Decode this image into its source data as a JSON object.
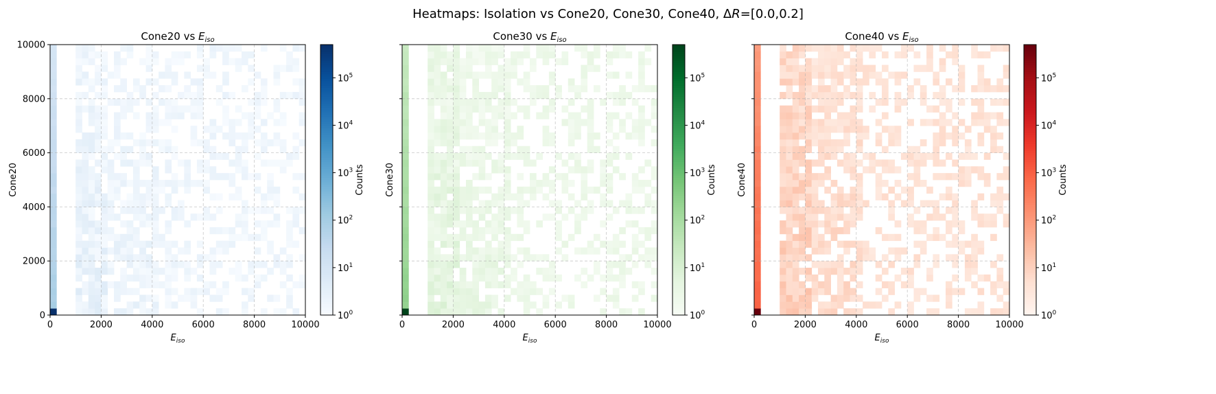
{
  "figure": {
    "title_prefix": "Heatmaps: Isolation vs Cone20, Cone30, Cone40, Δ",
    "title_italic": "R",
    "title_suffix": "=[0.0,0.2]"
  },
  "chart_data": [
    {
      "type": "heatmap",
      "title_prefix": "Cone20 vs ",
      "title_symbol": "E",
      "title_sub": "iso",
      "xlabel_symbol": "E",
      "xlabel_sub": "iso",
      "ylabel": "Cone20",
      "xlim": [
        0,
        10000
      ],
      "ylim": [
        0,
        10000
      ],
      "xticks": [
        0,
        2000,
        4000,
        6000,
        8000,
        10000
      ],
      "yticks": [
        0,
        2000,
        4000,
        6000,
        8000,
        10000
      ],
      "show_y_tick_labels": true,
      "grid": true,
      "bins": 40,
      "colormap": "Blues",
      "colors": [
        "#f7fbff",
        "#deebf7",
        "#c6dbef",
        "#9ecae1",
        "#6baed6",
        "#4292c6",
        "#2171b5",
        "#08519c",
        "#08306b"
      ],
      "colorbar": {
        "label": "Counts",
        "scale": "log",
        "range": [
          1,
          500000
        ],
        "ticks": [
          {
            "base": "10",
            "exp": "0"
          },
          {
            "base": "10",
            "exp": "1"
          },
          {
            "base": "10",
            "exp": "2"
          },
          {
            "base": "10",
            "exp": "3"
          },
          {
            "base": "10",
            "exp": "4"
          },
          {
            "base": "10",
            "exp": "5"
          }
        ]
      },
      "peak_cell": {
        "x": [
          0,
          250
        ],
        "y": [
          0,
          250
        ],
        "count": 500000
      }
    },
    {
      "type": "heatmap",
      "title_prefix": "Cone30 vs ",
      "title_symbol": "E",
      "title_sub": "iso",
      "xlabel_symbol": "E",
      "xlabel_sub": "iso",
      "ylabel": "Cone30",
      "xlim": [
        0,
        10000
      ],
      "ylim": [
        0,
        10000
      ],
      "xticks": [
        0,
        2000,
        4000,
        6000,
        8000,
        10000
      ],
      "yticks": [
        0,
        2000,
        4000,
        6000,
        8000,
        10000
      ],
      "show_y_tick_labels": false,
      "grid": true,
      "bins": 40,
      "colormap": "Greens",
      "colors": [
        "#f7fcf5",
        "#e5f5e0",
        "#c7e9c0",
        "#a1d99b",
        "#74c476",
        "#41ab5d",
        "#238b45",
        "#006d2c",
        "#00441b"
      ],
      "colorbar": {
        "label": "Counts",
        "scale": "log",
        "range": [
          1,
          500000
        ],
        "ticks": [
          {
            "base": "10",
            "exp": "0"
          },
          {
            "base": "10",
            "exp": "1"
          },
          {
            "base": "10",
            "exp": "2"
          },
          {
            "base": "10",
            "exp": "3"
          },
          {
            "base": "10",
            "exp": "4"
          },
          {
            "base": "10",
            "exp": "5"
          }
        ]
      },
      "peak_cell": {
        "x": [
          0,
          250
        ],
        "y": [
          0,
          250
        ],
        "count": 500000
      }
    },
    {
      "type": "heatmap",
      "title_prefix": "Cone40 vs ",
      "title_symbol": "E",
      "title_sub": "iso",
      "xlabel_symbol": "E",
      "xlabel_sub": "iso",
      "ylabel": "Cone40",
      "xlim": [
        0,
        10000
      ],
      "ylim": [
        0,
        10000
      ],
      "xticks": [
        0,
        2000,
        4000,
        6000,
        8000,
        10000
      ],
      "yticks": [
        0,
        2000,
        4000,
        6000,
        8000,
        10000
      ],
      "show_y_tick_labels": false,
      "grid": true,
      "bins": 40,
      "colormap": "Reds",
      "colors": [
        "#fff5f0",
        "#fee0d2",
        "#fcbba1",
        "#fc9272",
        "#fb6a4a",
        "#ef3b2c",
        "#cb181d",
        "#a50f15",
        "#67000d"
      ],
      "colorbar": {
        "label": "Counts",
        "scale": "log",
        "range": [
          1,
          500000
        ],
        "ticks": [
          {
            "base": "10",
            "exp": "0"
          },
          {
            "base": "10",
            "exp": "1"
          },
          {
            "base": "10",
            "exp": "2"
          },
          {
            "base": "10",
            "exp": "3"
          },
          {
            "base": "10",
            "exp": "4"
          },
          {
            "base": "10",
            "exp": "5"
          }
        ]
      },
      "peak_cell": {
        "x": [
          0,
          250
        ],
        "y": [
          0,
          250
        ],
        "count": 500000
      }
    }
  ]
}
